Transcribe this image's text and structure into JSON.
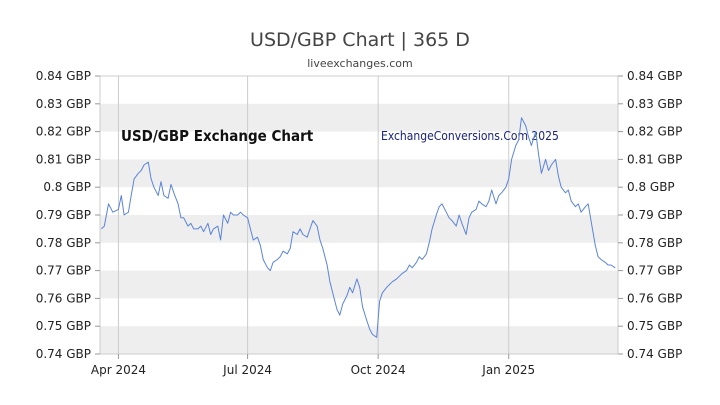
{
  "chart_data": {
    "type": "line",
    "title": "USD/GBP Chart | 365 D",
    "subtitle": "liveexchanges.com",
    "watermark_left": "USD/GBP Exchange Chart",
    "watermark_right": "ExchangeConversions.Com 2025",
    "xlabel": "",
    "ylabel": "",
    "ylim": [
      0.74,
      0.84
    ],
    "y_ticks": [
      {
        "value": 0.74,
        "label": "0.74 GBP"
      },
      {
        "value": 0.75,
        "label": "0.75 GBP"
      },
      {
        "value": 0.76,
        "label": "0.76 GBP"
      },
      {
        "value": 0.77,
        "label": "0.77 GBP"
      },
      {
        "value": 0.78,
        "label": "0.78 GBP"
      },
      {
        "value": 0.79,
        "label": "0.79 GBP"
      },
      {
        "value": 0.8,
        "label": "0.8 GBP"
      },
      {
        "value": 0.81,
        "label": "0.81 GBP"
      },
      {
        "value": 0.82,
        "label": "0.82 GBP"
      },
      {
        "value": 0.83,
        "label": "0.83 GBP"
      },
      {
        "value": 0.84,
        "label": "0.84 GBP"
      }
    ],
    "xlim": [
      "2024-03-19",
      "2025-03-19"
    ],
    "x_ticks": [
      {
        "date": "2024-04-01",
        "label": "Apr 2024"
      },
      {
        "date": "2024-07-01",
        "label": "Jul 2024"
      },
      {
        "date": "2024-10-01",
        "label": "Oct 2024"
      },
      {
        "date": "2025-01-01",
        "label": "Jan 2025"
      }
    ],
    "grid": true,
    "alternating_bands": true,
    "colors": {
      "line": "#5b84d8",
      "band": "#eeeeee",
      "grid": "#cccccc",
      "border": "#cccccc"
    },
    "series": [
      {
        "points": [
          [
            "2024-03-20",
            0.785
          ],
          [
            "2024-03-22",
            0.786
          ],
          [
            "2024-03-25",
            0.794
          ],
          [
            "2024-03-28",
            0.791
          ],
          [
            "2024-04-01",
            0.792
          ],
          [
            "2024-04-03",
            0.797
          ],
          [
            "2024-04-05",
            0.79
          ],
          [
            "2024-04-08",
            0.791
          ],
          [
            "2024-04-10",
            0.797
          ],
          [
            "2024-04-12",
            0.803
          ],
          [
            "2024-04-15",
            0.805
          ],
          [
            "2024-04-17",
            0.806
          ],
          [
            "2024-04-19",
            0.808
          ],
          [
            "2024-04-22",
            0.809
          ],
          [
            "2024-04-24",
            0.803
          ],
          [
            "2024-04-26",
            0.8
          ],
          [
            "2024-04-29",
            0.797
          ],
          [
            "2024-05-01",
            0.802
          ],
          [
            "2024-05-03",
            0.797
          ],
          [
            "2024-05-06",
            0.796
          ],
          [
            "2024-05-08",
            0.801
          ],
          [
            "2024-05-10",
            0.798
          ],
          [
            "2024-05-13",
            0.794
          ],
          [
            "2024-05-15",
            0.789
          ],
          [
            "2024-05-17",
            0.789
          ],
          [
            "2024-05-20",
            0.786
          ],
          [
            "2024-05-22",
            0.787
          ],
          [
            "2024-05-24",
            0.785
          ],
          [
            "2024-05-27",
            0.785
          ],
          [
            "2024-05-29",
            0.786
          ],
          [
            "2024-05-31",
            0.784
          ],
          [
            "2024-06-03",
            0.787
          ],
          [
            "2024-06-05",
            0.783
          ],
          [
            "2024-06-07",
            0.785
          ],
          [
            "2024-06-10",
            0.786
          ],
          [
            "2024-06-12",
            0.781
          ],
          [
            "2024-06-14",
            0.79
          ],
          [
            "2024-06-17",
            0.787
          ],
          [
            "2024-06-19",
            0.791
          ],
          [
            "2024-06-21",
            0.79
          ],
          [
            "2024-06-24",
            0.79
          ],
          [
            "2024-06-26",
            0.791
          ],
          [
            "2024-06-28",
            0.79
          ],
          [
            "2024-07-01",
            0.789
          ],
          [
            "2024-07-03",
            0.785
          ],
          [
            "2024-07-05",
            0.781
          ],
          [
            "2024-07-08",
            0.782
          ],
          [
            "2024-07-10",
            0.779
          ],
          [
            "2024-07-12",
            0.774
          ],
          [
            "2024-07-15",
            0.771
          ],
          [
            "2024-07-17",
            0.77
          ],
          [
            "2024-07-19",
            0.773
          ],
          [
            "2024-07-22",
            0.774
          ],
          [
            "2024-07-24",
            0.775
          ],
          [
            "2024-07-26",
            0.777
          ],
          [
            "2024-07-29",
            0.776
          ],
          [
            "2024-07-31",
            0.778
          ],
          [
            "2024-08-02",
            0.784
          ],
          [
            "2024-08-05",
            0.783
          ],
          [
            "2024-08-07",
            0.785
          ],
          [
            "2024-08-09",
            0.783
          ],
          [
            "2024-08-12",
            0.782
          ],
          [
            "2024-08-14",
            0.785
          ],
          [
            "2024-08-16",
            0.788
          ],
          [
            "2024-08-19",
            0.786
          ],
          [
            "2024-08-21",
            0.781
          ],
          [
            "2024-08-23",
            0.778
          ],
          [
            "2024-08-26",
            0.772
          ],
          [
            "2024-08-28",
            0.766
          ],
          [
            "2024-08-30",
            0.762
          ],
          [
            "2024-09-02",
            0.756
          ],
          [
            "2024-09-04",
            0.754
          ],
          [
            "2024-09-06",
            0.758
          ],
          [
            "2024-09-09",
            0.761
          ],
          [
            "2024-09-11",
            0.764
          ],
          [
            "2024-09-13",
            0.762
          ],
          [
            "2024-09-16",
            0.767
          ],
          [
            "2024-09-18",
            0.764
          ],
          [
            "2024-09-20",
            0.757
          ],
          [
            "2024-09-23",
            0.752
          ],
          [
            "2024-09-25",
            0.749
          ],
          [
            "2024-09-27",
            0.747
          ],
          [
            "2024-09-30",
            0.746
          ],
          [
            "2024-10-02",
            0.759
          ],
          [
            "2024-10-04",
            0.762
          ],
          [
            "2024-10-07",
            0.764
          ],
          [
            "2024-10-09",
            0.765
          ],
          [
            "2024-10-11",
            0.766
          ],
          [
            "2024-10-14",
            0.767
          ],
          [
            "2024-10-16",
            0.768
          ],
          [
            "2024-10-18",
            0.769
          ],
          [
            "2024-10-21",
            0.77
          ],
          [
            "2024-10-23",
            0.772
          ],
          [
            "2024-10-25",
            0.771
          ],
          [
            "2024-10-28",
            0.773
          ],
          [
            "2024-10-30",
            0.775
          ],
          [
            "2024-11-01",
            0.774
          ],
          [
            "2024-11-04",
            0.776
          ],
          [
            "2024-11-06",
            0.78
          ],
          [
            "2024-11-08",
            0.785
          ],
          [
            "2024-11-11",
            0.79
          ],
          [
            "2024-11-13",
            0.793
          ],
          [
            "2024-11-15",
            0.794
          ],
          [
            "2024-11-18",
            0.791
          ],
          [
            "2024-11-20",
            0.789
          ],
          [
            "2024-11-22",
            0.788
          ],
          [
            "2024-11-25",
            0.786
          ],
          [
            "2024-11-27",
            0.79
          ],
          [
            "2024-11-29",
            0.787
          ],
          [
            "2024-12-02",
            0.783
          ],
          [
            "2024-12-04",
            0.789
          ],
          [
            "2024-12-06",
            0.791
          ],
          [
            "2024-12-09",
            0.792
          ],
          [
            "2024-12-11",
            0.795
          ],
          [
            "2024-12-13",
            0.794
          ],
          [
            "2024-12-16",
            0.793
          ],
          [
            "2024-12-18",
            0.795
          ],
          [
            "2024-12-20",
            0.799
          ],
          [
            "2024-12-23",
            0.794
          ],
          [
            "2024-12-25",
            0.797
          ],
          [
            "2024-12-27",
            0.798
          ],
          [
            "2024-12-30",
            0.8
          ],
          [
            "2025-01-01",
            0.803
          ],
          [
            "2025-01-03",
            0.81
          ],
          [
            "2025-01-06",
            0.815
          ],
          [
            "2025-01-08",
            0.817
          ],
          [
            "2025-01-10",
            0.825
          ],
          [
            "2025-01-13",
            0.822
          ],
          [
            "2025-01-15",
            0.818
          ],
          [
            "2025-01-17",
            0.815
          ],
          [
            "2025-01-20",
            0.82
          ],
          [
            "2025-01-22",
            0.812
          ],
          [
            "2025-01-24",
            0.805
          ],
          [
            "2025-01-27",
            0.81
          ],
          [
            "2025-01-29",
            0.806
          ],
          [
            "2025-01-31",
            0.808
          ],
          [
            "2025-02-03",
            0.81
          ],
          [
            "2025-02-05",
            0.804
          ],
          [
            "2025-02-07",
            0.8
          ],
          [
            "2025-02-10",
            0.798
          ],
          [
            "2025-02-12",
            0.799
          ],
          [
            "2025-02-14",
            0.795
          ],
          [
            "2025-02-17",
            0.793
          ],
          [
            "2025-02-19",
            0.794
          ],
          [
            "2025-02-21",
            0.791
          ],
          [
            "2025-02-24",
            0.793
          ],
          [
            "2025-02-26",
            0.794
          ],
          [
            "2025-02-28",
            0.788
          ],
          [
            "2025-03-03",
            0.779
          ],
          [
            "2025-03-05",
            0.775
          ],
          [
            "2025-03-07",
            0.774
          ],
          [
            "2025-03-10",
            0.773
          ],
          [
            "2025-03-12",
            0.772
          ],
          [
            "2025-03-14",
            0.772
          ],
          [
            "2025-03-17",
            0.771
          ]
        ]
      }
    ]
  }
}
